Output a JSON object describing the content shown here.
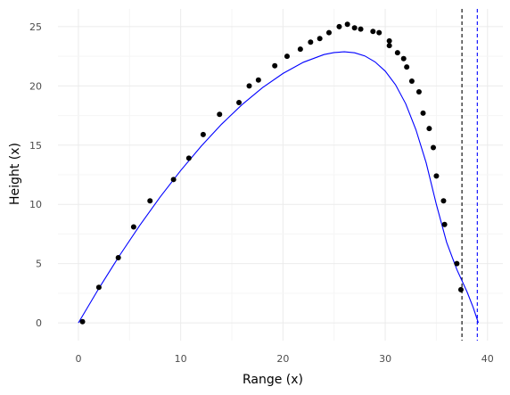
{
  "chart_data": {
    "type": "scatter",
    "xlabel": "Range (x)",
    "ylabel": "Height (x)",
    "xlim": [
      -2,
      41.5
    ],
    "ylim": [
      -1.5,
      26.5
    ],
    "x_ticks": [
      0,
      10,
      20,
      30,
      40
    ],
    "y_ticks": [
      0,
      5,
      10,
      15,
      20,
      25
    ],
    "x_tick_labels": [
      "0",
      "10",
      "20",
      "30",
      "40"
    ],
    "y_tick_labels": [
      "0",
      "5",
      "10",
      "15",
      "20",
      "25"
    ],
    "grid": true,
    "series": [
      {
        "kind": "points",
        "color": "#000000",
        "points": [
          [
            0.4,
            0.1
          ],
          [
            2.0,
            3.0
          ],
          [
            3.9,
            5.5
          ],
          [
            5.4,
            8.1
          ],
          [
            7.0,
            10.3
          ],
          [
            9.3,
            12.1
          ],
          [
            10.8,
            13.9
          ],
          [
            12.2,
            15.9
          ],
          [
            13.8,
            17.6
          ],
          [
            15.7,
            18.6
          ],
          [
            16.7,
            20.0
          ],
          [
            17.6,
            20.5
          ],
          [
            19.2,
            21.7
          ],
          [
            20.4,
            22.5
          ],
          [
            21.7,
            23.1
          ],
          [
            22.7,
            23.7
          ],
          [
            23.6,
            24.0
          ],
          [
            24.5,
            24.5
          ],
          [
            25.5,
            25.0
          ],
          [
            26.3,
            25.2
          ],
          [
            27.0,
            24.9
          ],
          [
            27.6,
            24.8
          ],
          [
            28.8,
            24.6
          ],
          [
            29.4,
            24.5
          ],
          [
            30.4,
            23.8
          ],
          [
            30.4,
            23.4
          ],
          [
            31.2,
            22.8
          ],
          [
            31.8,
            22.3
          ],
          [
            32.1,
            21.6
          ],
          [
            32.6,
            20.4
          ],
          [
            33.3,
            19.5
          ],
          [
            33.7,
            17.7
          ],
          [
            34.3,
            16.4
          ],
          [
            34.7,
            14.8
          ],
          [
            35.0,
            12.4
          ],
          [
            35.7,
            10.3
          ],
          [
            35.8,
            8.3
          ],
          [
            37.0,
            5.0
          ],
          [
            37.4,
            2.8
          ]
        ]
      },
      {
        "kind": "line",
        "color": "#0000ff",
        "points": [
          [
            0,
            0
          ],
          [
            2,
            2.91
          ],
          [
            4,
            5.65
          ],
          [
            6,
            8.23
          ],
          [
            8,
            10.63
          ],
          [
            10,
            12.86
          ],
          [
            12,
            14.91
          ],
          [
            14,
            16.77
          ],
          [
            16,
            18.42
          ],
          [
            18,
            19.85
          ],
          [
            20,
            21.05
          ],
          [
            22,
            22.0
          ],
          [
            24,
            22.65
          ],
          [
            25,
            22.82
          ],
          [
            26,
            22.88
          ],
          [
            27,
            22.8
          ],
          [
            28,
            22.53
          ],
          [
            29,
            22.03
          ],
          [
            30,
            21.25
          ],
          [
            31,
            20.1
          ],
          [
            32,
            18.5
          ],
          [
            33,
            16.3
          ],
          [
            34,
            13.5
          ],
          [
            35,
            10.0
          ],
          [
            36,
            6.8
          ],
          [
            37,
            4.5
          ],
          [
            38,
            2.6
          ],
          [
            38.6,
            1.3
          ],
          [
            39.1,
            0
          ]
        ]
      }
    ],
    "vlines": [
      {
        "x": 37.5,
        "color": "#000000",
        "style": "dashed"
      },
      {
        "x": 39.0,
        "color": "#0000ff",
        "style": "dashed"
      }
    ]
  }
}
